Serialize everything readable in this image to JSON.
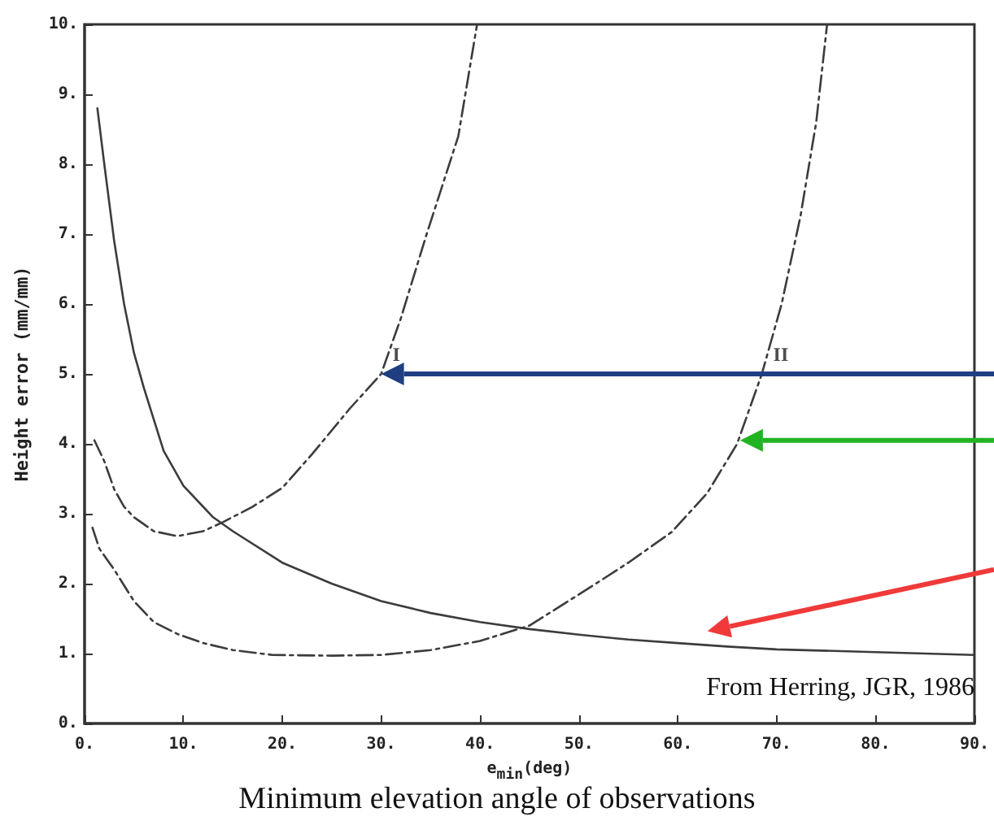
{
  "chart_data": {
    "type": "line",
    "xlabel": "e$_{min}$(deg)",
    "ylabel": "Height error (mm/mm)",
    "xlim": [
      0,
      90
    ],
    "xticks": [
      {
        "value": 0,
        "label": "0."
      },
      {
        "value": 10,
        "label": "10."
      },
      {
        "value": 20,
        "label": "20."
      },
      {
        "value": 30,
        "label": "30."
      },
      {
        "value": 40,
        "label": "40."
      },
      {
        "value": 50,
        "label": "50."
      },
      {
        "value": 60,
        "label": "60."
      },
      {
        "value": 70,
        "label": "70."
      },
      {
        "value": 80,
        "label": "80."
      },
      {
        "value": 90,
        "label": "90."
      }
    ],
    "ylim": [
      0,
      10
    ],
    "yticks": [
      {
        "value": 0,
        "label": "0."
      },
      {
        "value": 1,
        "label": "1."
      },
      {
        "value": 2,
        "label": "2."
      },
      {
        "value": 3,
        "label": "3."
      },
      {
        "value": 4,
        "label": "4."
      },
      {
        "value": 5,
        "label": "5."
      },
      {
        "value": 6,
        "label": "6."
      },
      {
        "value": 7,
        "label": "7."
      },
      {
        "value": 8,
        "label": "8."
      },
      {
        "value": 9,
        "label": "9."
      },
      {
        "value": 10,
        "label": "10."
      }
    ],
    "series": [
      {
        "color": "#3c3c3c",
        "line_style": "solid",
        "x": [
          1.3,
          2,
          3,
          4,
          5,
          6,
          8,
          10,
          13,
          15,
          20,
          25,
          30,
          35,
          40,
          45,
          50,
          55,
          60,
          65,
          70,
          80,
          90
        ],
        "values": [
          8.8,
          8.0,
          6.9,
          6.0,
          5.3,
          4.8,
          3.9,
          3.4,
          2.95,
          2.75,
          2.3,
          2.0,
          1.75,
          1.58,
          1.45,
          1.35,
          1.27,
          1.2,
          1.15,
          1.1,
          1.06,
          1.02,
          0.98
        ]
      },
      {
        "color": "#3c3c3c",
        "line_style": "dashed",
        "x": [
          1,
          2,
          3,
          4,
          5,
          7,
          9.4,
          12,
          14,
          17,
          20,
          23,
          26.8,
          30,
          32,
          34.6,
          37.8,
          39.7
        ],
        "values": [
          4.05,
          3.75,
          3.35,
          3.1,
          2.95,
          2.75,
          2.68,
          2.75,
          2.88,
          3.1,
          3.37,
          3.85,
          4.5,
          5.0,
          5.8,
          7.0,
          8.4,
          10
        ]
      },
      {
        "color": "#3c3c3c",
        "line_style": "dashed",
        "x": [
          0.8,
          1.5,
          3,
          5,
          7,
          9.4,
          12,
          15,
          19,
          25,
          30,
          35,
          40,
          45,
          51.5,
          55,
          59.4,
          63,
          66,
          68.5,
          70.5,
          72.4,
          74,
          75.1
        ],
        "values": [
          2.8,
          2.5,
          2.2,
          1.75,
          1.45,
          1.28,
          1.15,
          1.05,
          0.98,
          0.97,
          0.98,
          1.05,
          1.18,
          1.4,
          1.98,
          2.3,
          2.74,
          3.3,
          4.0,
          5.0,
          6.0,
          7.25,
          8.6,
          10
        ]
      }
    ],
    "annotations": [
      {
        "text": "I",
        "x": 30,
        "y": 5.0
      },
      {
        "text": "II",
        "x": 68.5,
        "y": 5.0
      },
      "From Herring, JGR, 1986",
      "Minimum elevation angle of observations"
    ],
    "grid": false,
    "marker": "none"
  }
}
